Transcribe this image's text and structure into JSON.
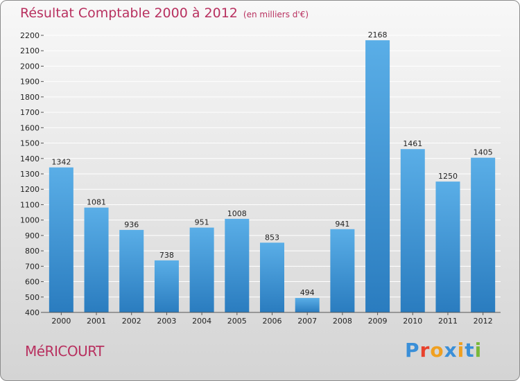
{
  "header": {
    "title": "Résultat Comptable 2000 à 2012",
    "unit": "(en milliers d'€)"
  },
  "footer": {
    "place": "MéRICOURT",
    "logo_text": "Proxiti"
  },
  "colors": {
    "title": "#b8305f",
    "bar_top": "#5aaee7",
    "bar_bottom": "#2a7cbf",
    "grid": "#ffffff",
    "logo_letters": [
      "#3a8fd8",
      "#e8412c",
      "#f0a020",
      "#3a8fd8",
      "#f0a020",
      "#3a8fd8",
      "#7ab83a"
    ]
  },
  "chart_data": {
    "type": "bar",
    "title": "Résultat Comptable 2000 à 2012",
    "subtitle": "(en milliers d'€)",
    "xlabel": "",
    "ylabel": "",
    "categories": [
      "2000",
      "2001",
      "2002",
      "2003",
      "2004",
      "2005",
      "2006",
      "2007",
      "2008",
      "2009",
      "2010",
      "2011",
      "2012"
    ],
    "values": [
      1342,
      1081,
      936,
      738,
      951,
      1008,
      853,
      494,
      941,
      2168,
      1461,
      1250,
      1405
    ],
    "ylim": [
      400,
      2200
    ],
    "ytick_step": 100,
    "grid": true,
    "legend": "none"
  }
}
